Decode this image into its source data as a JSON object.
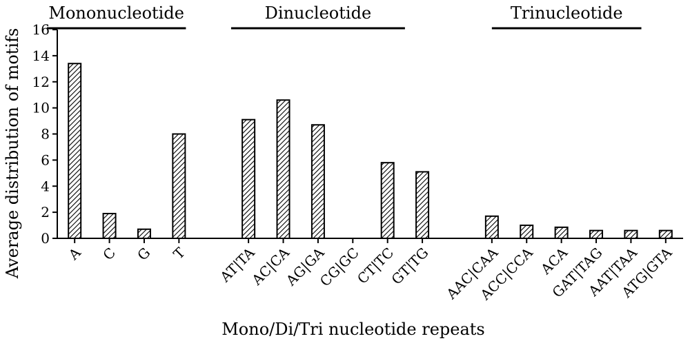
{
  "chart_data": {
    "type": "bar",
    "title": "",
    "xlabel": "Mono/Di/Tri nucleotide repeats",
    "ylabel": "Average distribution of motifs",
    "ylim": [
      0,
      16
    ],
    "yticks": [
      0,
      2,
      4,
      6,
      8,
      10,
      12,
      14,
      16
    ],
    "grid": false,
    "bar_fill": "hatched",
    "bar_color": "#000000",
    "groups": [
      {
        "label": "Mononucleotide",
        "categories": [
          "A",
          "C",
          "G",
          "T"
        ],
        "values": [
          13.4,
          1.9,
          0.7,
          8.0
        ]
      },
      {
        "label": "Dinucleotide",
        "categories": [
          "AT|TA",
          "AC|CA",
          "AG|GA",
          "CG|GC",
          "CT|TC",
          "GT|TG"
        ],
        "values": [
          9.1,
          10.6,
          8.7,
          0,
          5.8,
          5.1
        ]
      },
      {
        "label": "Trinucleotide",
        "categories": [
          "AAC|CAA",
          "ACC|CCA",
          "ACA",
          "GAT|TAG",
          "AAT|TAA",
          "ATG|GTA"
        ],
        "values": [
          1.7,
          1.0,
          0.85,
          0.6,
          0.6,
          0.6
        ]
      }
    ]
  }
}
